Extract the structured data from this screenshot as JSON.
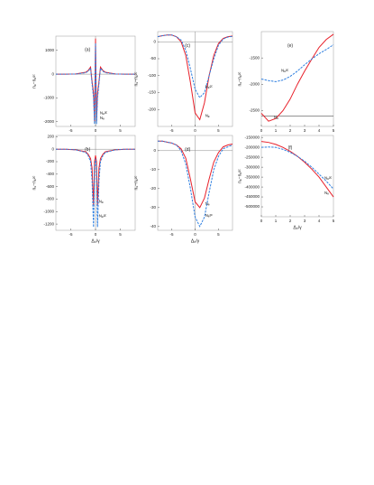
{
  "chart_data": [
    {
      "type": "line",
      "label": "(a)",
      "ylabel": "nₑ−nₑᵍᶜ",
      "xlabel": null,
      "x": [
        -8,
        -6,
        -4,
        -2,
        -1.5,
        -1,
        -0.7,
        -0.4,
        -0.2,
        0,
        0.2,
        0.4,
        0.7,
        1,
        1.5,
        2,
        4,
        6,
        8
      ],
      "xlim": [
        -8,
        8
      ],
      "ylim": [
        -2200,
        1600
      ],
      "xticks": [
        -5,
        0,
        5
      ],
      "yticks": [
        1000,
        0,
        -1000,
        -2000
      ],
      "series": [
        {
          "name": "Nₑ",
          "color": "#e8202a",
          "dash": false,
          "values": [
            0,
            0,
            10,
            80,
            150,
            300,
            -300,
            -800,
            -2000,
            1500,
            -2000,
            -800,
            -300,
            300,
            150,
            80,
            10,
            0,
            0
          ]
        },
        {
          "name": "Nₑᵍᶜ",
          "color": "#2f7fe0",
          "dash": true,
          "values": [
            0,
            0,
            5,
            60,
            120,
            250,
            -400,
            -1000,
            -2100,
            1300,
            -2100,
            -1000,
            -400,
            250,
            120,
            60,
            5,
            0,
            0
          ]
        }
      ]
    },
    {
      "type": "line",
      "label": "(c)",
      "ylabel": "nₑ−nₑᵍᶜ",
      "xlabel": null,
      "x": [
        -8,
        -7,
        -6,
        -5,
        -4,
        -3,
        -2,
        -1,
        0,
        1,
        2,
        3,
        4,
        5,
        6,
        7,
        8
      ],
      "xlim": [
        -8,
        8
      ],
      "ylim": [
        -250,
        30
      ],
      "xticks": [
        -5,
        0,
        5
      ],
      "yticks": [
        0,
        -50,
        -100,
        -150,
        -200
      ],
      "series": [
        {
          "name": "Nₑ",
          "color": "#e8202a",
          "dash": false,
          "values": [
            15,
            18,
            20,
            20,
            15,
            0,
            -40,
            -120,
            -210,
            -230,
            -180,
            -100,
            -40,
            -5,
            10,
            15,
            17
          ]
        },
        {
          "name": "Nₑᵍᶜ",
          "color": "#2f7fe0",
          "dash": true,
          "values": [
            15,
            18,
            20,
            20,
            15,
            5,
            -25,
            -80,
            -140,
            -165,
            -150,
            -100,
            -50,
            -10,
            8,
            14,
            16
          ]
        }
      ]
    },
    {
      "type": "line",
      "label": "(e)",
      "ylabel": "nₑ−nₑᵍᶜ",
      "xlabel": null,
      "x": [
        0,
        0.5,
        1,
        1.5,
        2,
        2.5,
        3,
        3.5,
        4,
        4.5,
        5
      ],
      "xlim": [
        0,
        5
      ],
      "ylim": [
        -2800,
        -1000
      ],
      "xticks": [
        0,
        1,
        2,
        3,
        4,
        5
      ],
      "yticks": [
        -1500,
        -2000,
        -2500
      ],
      "hline": -2600,
      "series": [
        {
          "name": "Nₑ",
          "color": "#e8202a",
          "dash": false,
          "values": [
            -2550,
            -2700,
            -2650,
            -2500,
            -2280,
            -2000,
            -1750,
            -1520,
            -1300,
            -1150,
            -1050
          ]
        },
        {
          "name": "Nₑᵍᶜ",
          "color": "#2f7fe0",
          "dash": true,
          "values": [
            -1900,
            -1930,
            -1950,
            -1920,
            -1850,
            -1750,
            -1630,
            -1520,
            -1420,
            -1340,
            -1250
          ]
        }
      ]
    },
    {
      "type": "line",
      "label": "(b)",
      "ylabel": "nₑ−nₑᵍᶜ",
      "xlabel": "Δₚ/γ",
      "x": [
        -8,
        -6,
        -4,
        -2,
        -1.5,
        -1,
        -0.7,
        -0.4,
        -0.2,
        0,
        0.2,
        0.4,
        0.7,
        1,
        1.5,
        2,
        4,
        6,
        8
      ],
      "xlim": [
        -8,
        8
      ],
      "ylim": [
        -1300,
        220
      ],
      "xticks": [
        -5,
        0,
        5
      ],
      "yticks": [
        200,
        0,
        -200,
        -400,
        -600,
        -800,
        -1000,
        -1200
      ],
      "series": [
        {
          "name": "Nₑ",
          "color": "#e8202a",
          "dash": false,
          "values": [
            0,
            0,
            -10,
            -40,
            -80,
            -150,
            -300,
            -900,
            -200,
            -100,
            -200,
            -900,
            -300,
            -150,
            -80,
            -40,
            -10,
            0,
            0
          ]
        },
        {
          "name": "Nₑᵍᶜ",
          "color": "#2f7fe0",
          "dash": true,
          "values": [
            0,
            0,
            -10,
            -50,
            -100,
            -200,
            -500,
            -1250,
            -300,
            -150,
            -300,
            -1250,
            -500,
            -200,
            -100,
            -50,
            -10,
            0,
            0
          ]
        }
      ]
    },
    {
      "type": "line",
      "label": "(d)",
      "ylabel": "nₑ−nₑᵍᶜ",
      "xlabel": "Δₚ/γ",
      "x": [
        -8,
        -7,
        -6,
        -5,
        -4,
        -3,
        -2,
        -1,
        0,
        1,
        2,
        3,
        4,
        5,
        6,
        7,
        8
      ],
      "xlim": [
        -8,
        8
      ],
      "ylim": [
        -42,
        8
      ],
      "xticks": [
        -5,
        0,
        5
      ],
      "yticks": [
        0,
        -10,
        -20,
        -30,
        -40
      ],
      "series": [
        {
          "name": "Nₑ",
          "color": "#e8202a",
          "dash": false,
          "values": [
            5,
            5,
            4.5,
            4,
            3,
            1,
            -4,
            -15,
            -27,
            -30,
            -25,
            -15,
            -6,
            -1,
            2,
            3,
            3.5
          ]
        },
        {
          "name": "Nₑᵍᶜ",
          "color": "#2f7fe0",
          "dash": true,
          "values": [
            5,
            5,
            4.5,
            4,
            3,
            0,
            -7,
            -20,
            -35,
            -40,
            -35,
            -22,
            -10,
            -3,
            1,
            2,
            3
          ]
        }
      ]
    },
    {
      "type": "line",
      "label": "(f)",
      "ylabel": "nₑ−nₑᵍᶜ",
      "xlabel": "Δₚ/γ",
      "x": [
        0,
        0.5,
        1,
        1.5,
        2,
        2.5,
        3,
        3.5,
        4,
        4.5,
        5
      ],
      "xlim": [
        0,
        5
      ],
      "ylim": [
        -550000,
        -140000
      ],
      "xticks": [
        0,
        1,
        2,
        3,
        4,
        5
      ],
      "yticks": [
        -150000,
        -200000,
        -250000,
        -300000,
        -350000,
        -400000,
        -450000,
        -500000
      ],
      "series": [
        {
          "name": "Nₑ",
          "color": "#e8202a",
          "dash": false,
          "values": [
            -170000,
            -175000,
            -185000,
            -200000,
            -220000,
            -245000,
            -275000,
            -310000,
            -350000,
            -400000,
            -450000
          ]
        },
        {
          "name": "Nₑᵍᶜ",
          "color": "#2f7fe0",
          "dash": true,
          "values": [
            -200000,
            -198000,
            -200000,
            -210000,
            -225000,
            -245000,
            -270000,
            -300000,
            -335000,
            -370000,
            -410000
          ]
        }
      ]
    }
  ]
}
